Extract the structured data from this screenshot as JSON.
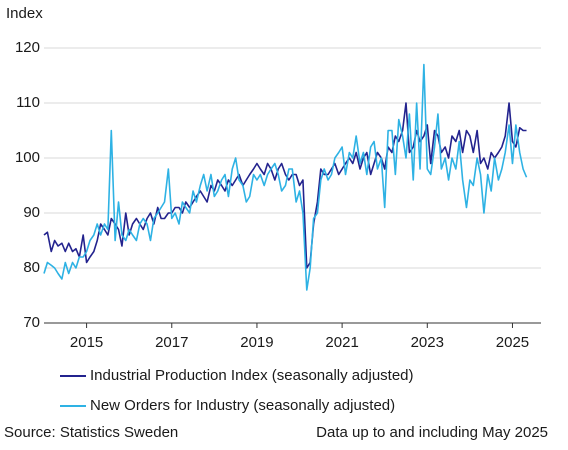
{
  "chart_data": {
    "type": "line",
    "y_axis_label": "Index",
    "x": [
      2014.0,
      2014.08,
      2014.17,
      2014.25,
      2014.33,
      2014.42,
      2014.5,
      2014.58,
      2014.67,
      2014.75,
      2014.83,
      2014.92,
      2015.0,
      2015.08,
      2015.17,
      2015.25,
      2015.33,
      2015.42,
      2015.5,
      2015.58,
      2015.67,
      2015.75,
      2015.83,
      2015.92,
      2016.0,
      2016.08,
      2016.17,
      2016.25,
      2016.33,
      2016.42,
      2016.5,
      2016.58,
      2016.67,
      2016.75,
      2016.83,
      2016.92,
      2017.0,
      2017.08,
      2017.17,
      2017.25,
      2017.33,
      2017.42,
      2017.5,
      2017.58,
      2017.67,
      2017.75,
      2017.83,
      2017.92,
      2018.0,
      2018.08,
      2018.17,
      2018.25,
      2018.33,
      2018.42,
      2018.5,
      2018.58,
      2018.67,
      2018.75,
      2018.83,
      2018.92,
      2019.0,
      2019.08,
      2019.17,
      2019.25,
      2019.33,
      2019.42,
      2019.5,
      2019.58,
      2019.67,
      2019.75,
      2019.83,
      2019.92,
      2020.0,
      2020.08,
      2020.17,
      2020.25,
      2020.33,
      2020.42,
      2020.5,
      2020.58,
      2020.67,
      2020.75,
      2020.83,
      2020.92,
      2021.0,
      2021.08,
      2021.17,
      2021.25,
      2021.33,
      2021.42,
      2021.5,
      2021.58,
      2021.67,
      2021.75,
      2021.83,
      2021.92,
      2022.0,
      2022.08,
      2022.17,
      2022.25,
      2022.33,
      2022.42,
      2022.5,
      2022.58,
      2022.67,
      2022.75,
      2022.83,
      2022.92,
      2023.0,
      2023.08,
      2023.17,
      2023.25,
      2023.33,
      2023.42,
      2023.5,
      2023.58,
      2023.67,
      2023.75,
      2023.83,
      2023.92,
      2024.0,
      2024.08,
      2024.17,
      2024.25,
      2024.33,
      2024.42,
      2024.5,
      2024.58,
      2024.67,
      2024.75,
      2024.83,
      2024.92,
      2025.0,
      2025.08,
      2025.17,
      2025.25,
      2025.33
    ],
    "series": [
      {
        "name": "Industrial Production Index (seasonally adjusted)",
        "color": "#23238e",
        "values": [
          86,
          86.5,
          83,
          85,
          84,
          84.5,
          83,
          84.5,
          83,
          83.5,
          82,
          86,
          81,
          82,
          83,
          85,
          88,
          87,
          86,
          89,
          88,
          87,
          84,
          90,
          86,
          88,
          89,
          88,
          87,
          89,
          90,
          88,
          91,
          89,
          89,
          90,
          90,
          91,
          91,
          90,
          92,
          91,
          92,
          93,
          94,
          93,
          92,
          95,
          94,
          96,
          95,
          94,
          96,
          95,
          96,
          97,
          95,
          96,
          97,
          98,
          99,
          98,
          97,
          99,
          98,
          96,
          98,
          99,
          97,
          96,
          97,
          97,
          95,
          96,
          80,
          81,
          88,
          92,
          98,
          97,
          97,
          98,
          99,
          97,
          98,
          99,
          100,
          99,
          101,
          98,
          100,
          101,
          97,
          99,
          101,
          100,
          98,
          102,
          101,
          104,
          103,
          105,
          110,
          101,
          102,
          105,
          103,
          104,
          106,
          99,
          105,
          104,
          101,
          102,
          100,
          104,
          103,
          105,
          101,
          105,
          104,
          101,
          105,
          99,
          100,
          98,
          101,
          100,
          101,
          102,
          104,
          110,
          103,
          102,
          105.5,
          105,
          105
        ]
      },
      {
        "name": "New Orders for Industry (seasonally adjusted)",
        "color": "#2eb2e4",
        "values": [
          79,
          81,
          80.5,
          80,
          79,
          78,
          81,
          79,
          81,
          80,
          82,
          82,
          83,
          85,
          86,
          88,
          86,
          88,
          87,
          105,
          85,
          92,
          86,
          85,
          87,
          86,
          85,
          88,
          89,
          88,
          85,
          89,
          90,
          91,
          92,
          98,
          89,
          90,
          88,
          92,
          91,
          90,
          94,
          92,
          95,
          97,
          94,
          97,
          93,
          94,
          96,
          97,
          93,
          98,
          100,
          96,
          95,
          92,
          93,
          97,
          96,
          97,
          95,
          97,
          98,
          99,
          97,
          94,
          95,
          98,
          98,
          92,
          94,
          90,
          76,
          80,
          89,
          90,
          96,
          98,
          96,
          97,
          100,
          101,
          102,
          97,
          101,
          100,
          104,
          99,
          101,
          97,
          102,
          103,
          98,
          100,
          91,
          105,
          105,
          97,
          107,
          104,
          100,
          108,
          96,
          110,
          98,
          117,
          98,
          97,
          102,
          108,
          98,
          100,
          96,
          100,
          98,
          103,
          96,
          91,
          96,
          95,
          100,
          97,
          90,
          97,
          94,
          100,
          96,
          98,
          101,
          106,
          99,
          106,
          101,
          98,
          96.5
        ]
      }
    ],
    "xlim": [
      2014,
      2025.67
    ],
    "xticks": [
      2015,
      2017,
      2019,
      2021,
      2023,
      2025
    ],
    "ylim": [
      70,
      120
    ],
    "yticks": [
      70,
      80,
      90,
      100,
      110,
      120
    ],
    "grid": true,
    "source": "Source: Statistics Sweden",
    "note": "Data up to and including May 2025"
  }
}
